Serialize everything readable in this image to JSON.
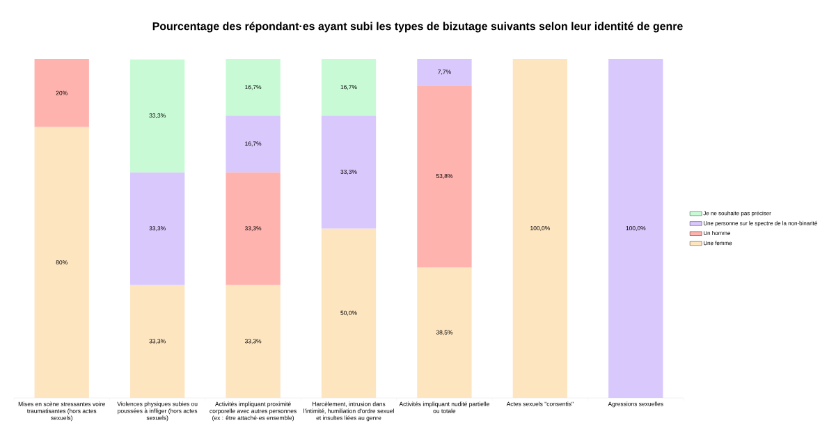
{
  "chart_data": {
    "type": "bar",
    "stacked": true,
    "title": "Pourcentage des répondant·es ayant subi les types de bizutage suivants selon leur identité de genre",
    "categories": [
      "Mises en scène stressantes voire traumatisantes (hors actes sexuels)",
      "Violences physiques subies ou poussées à infliger (hors actes sexuels)",
      "Activités impliquant proximité corporelle avec autres personnes (ex : être attaché·es ensemble)",
      "Harcèlement, intrusion dans l'intimité, humiliation d'ordre sexuel et insultes liées au genre",
      "Activités impliquant nudité partielle ou totale",
      "Actes sexuels \"consentis\"",
      "Agressions sexuelles"
    ],
    "ylim": [
      0,
      100
    ],
    "tick_labels": "x",
    "legend": "right",
    "series": [
      {
        "name": "Une femme",
        "color": "#fde5c0",
        "values": [
          80,
          33.3,
          33.3,
          50.0,
          38.5,
          100.0,
          null
        ],
        "value_labels": [
          "80%",
          "33,3%",
          "33,3%",
          "50,0%",
          "38,5%",
          "100,0%",
          null
        ]
      },
      {
        "name": "Un homme",
        "color": "#ffb3ae",
        "values": [
          20,
          null,
          33.3,
          null,
          53.8,
          null,
          null
        ],
        "value_labels": [
          "20%",
          null,
          "33,3%",
          null,
          "53,8%",
          null,
          null
        ]
      },
      {
        "name": "Une personne sur le spectre de la non-binarité",
        "color": "#d9c8fc",
        "values": [
          null,
          33.3,
          16.7,
          33.3,
          7.7,
          null,
          100.0
        ],
        "value_labels": [
          null,
          "33,3%",
          "16,7%",
          "33,3%",
          "7,7%",
          null,
          "100,0%"
        ]
      },
      {
        "name": "Je ne souhaite pas préciser",
        "color": "#c8fbd5",
        "values": [
          null,
          33.3,
          16.7,
          16.7,
          null,
          null,
          null
        ],
        "value_labels": [
          null,
          "33,3%",
          "16,7%",
          "16,7%",
          null,
          null,
          null
        ]
      }
    ]
  }
}
